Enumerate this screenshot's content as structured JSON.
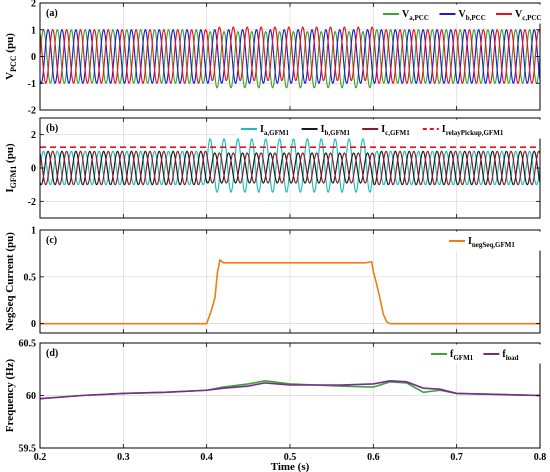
{
  "chart_data": [
    {
      "type": "line",
      "panel_label": "(a)",
      "ylabel": {
        "main": "V",
        "sub": "PCC",
        "tail": " (pu)"
      },
      "ylim": [
        -2,
        2
      ],
      "yticks": [
        -2,
        -1,
        0,
        1,
        2
      ],
      "xlim": [
        0.2,
        0.8
      ],
      "grid": true,
      "legend_position": "top-right",
      "fault_window": [
        0.4,
        0.6
      ],
      "series": [
        {
          "name": {
            "main": "V",
            "sub": "a,PCC"
          },
          "color": "#3aa335",
          "amplitude_pre": 1.0,
          "amplitude_fault": 1.05,
          "fault_offset": -0.12,
          "phase_deg": 0
        },
        {
          "name": {
            "main": "V",
            "sub": "b,PCC"
          },
          "color": "#1b1bd6",
          "amplitude_pre": 1.0,
          "amplitude_fault": 1.0,
          "fault_offset": 0.0,
          "phase_deg": -120
        },
        {
          "name": {
            "main": "V",
            "sub": "c,PCC"
          },
          "color": "#e8121c",
          "amplitude_pre": 1.0,
          "amplitude_fault": 1.0,
          "fault_offset": 0.1,
          "phase_deg": 120
        }
      ]
    },
    {
      "type": "line",
      "panel_label": "(b)",
      "ylabel": {
        "main": "I",
        "sub": "GFM1",
        "tail": " (pu)"
      },
      "ylim": [
        -3,
        3
      ],
      "yticks": [
        -2,
        0,
        2
      ],
      "xlim": [
        0.2,
        0.8
      ],
      "grid": true,
      "legend_position": "top-right",
      "fault_window": [
        0.4,
        0.6
      ],
      "series": [
        {
          "name": {
            "main": "I",
            "sub": "a,GFM1"
          },
          "color": "#1fbcbc",
          "amplitude_pre": 1.0,
          "amplitude_fault": 1.6,
          "fault_offset": 0.15,
          "phase_deg": 0
        },
        {
          "name": {
            "main": "I",
            "sub": "b,GFM1"
          },
          "color": "#1a1a1a",
          "amplitude_pre": 1.0,
          "amplitude_fault": 0.9,
          "fault_offset": 0.0,
          "phase_deg": -120
        },
        {
          "name": {
            "main": "I",
            "sub": "c,GFM1"
          },
          "color": "#8a1b2a",
          "amplitude_pre": 1.0,
          "amplitude_fault": 0.9,
          "fault_offset": 0.0,
          "phase_deg": 120
        },
        {
          "name": {
            "main": "I",
            "sub": "relayPickup,GFM1"
          },
          "color": "#e8121c",
          "dashed": true,
          "constant": 1.25
        }
      ]
    },
    {
      "type": "line",
      "panel_label": "(c)",
      "ylabel": {
        "main": "NegSeq Current (pu)",
        "sub": "",
        "tail": ""
      },
      "ylim": [
        -0.1,
        1.0
      ],
      "yticks": [
        0,
        0.5,
        1
      ],
      "xlim": [
        0.2,
        0.8
      ],
      "grid": true,
      "legend_position": "top-right",
      "series": [
        {
          "name": {
            "main": "I",
            "sub": "negSeq,GFM1"
          },
          "color": "#f07d14",
          "x": [
            0.2,
            0.4,
            0.402,
            0.406,
            0.41,
            0.413,
            0.416,
            0.42,
            0.5,
            0.59,
            0.598,
            0.6,
            0.604,
            0.608,
            0.612,
            0.616,
            0.62,
            0.8
          ],
          "y": [
            0.0,
            0.0,
            0.05,
            0.15,
            0.28,
            0.55,
            0.68,
            0.65,
            0.65,
            0.65,
            0.66,
            0.56,
            0.42,
            0.27,
            0.1,
            0.02,
            0.0,
            0.0
          ]
        }
      ]
    },
    {
      "type": "line",
      "panel_label": "(d)",
      "ylabel": {
        "main": "Frequency (Hz)",
        "sub": "",
        "tail": ""
      },
      "ylim": [
        59.5,
        60.5
      ],
      "yticks": [
        59.5,
        60,
        60.5
      ],
      "xlim": [
        0.2,
        0.8
      ],
      "xticks": [
        0.2,
        0.3,
        0.4,
        0.5,
        0.6,
        0.7,
        0.8
      ],
      "xlabel": "Time (s)",
      "grid": true,
      "legend_position": "top-right",
      "series": [
        {
          "name": {
            "main": "f",
            "sub": "GFM1"
          },
          "color": "#3aa335",
          "x": [
            0.2,
            0.25,
            0.3,
            0.35,
            0.4,
            0.42,
            0.45,
            0.47,
            0.5,
            0.53,
            0.56,
            0.6,
            0.62,
            0.64,
            0.66,
            0.68,
            0.7,
            0.75,
            0.8
          ],
          "y": [
            59.97,
            60.0,
            60.02,
            60.03,
            60.05,
            60.08,
            60.11,
            60.14,
            60.11,
            60.1,
            60.09,
            60.08,
            60.13,
            60.12,
            60.03,
            60.05,
            60.02,
            60.01,
            60.0
          ]
        },
        {
          "name": {
            "main": "f",
            "sub": "load"
          },
          "color": "#7b2a8e",
          "x": [
            0.2,
            0.25,
            0.3,
            0.35,
            0.4,
            0.42,
            0.45,
            0.47,
            0.5,
            0.53,
            0.56,
            0.6,
            0.62,
            0.64,
            0.66,
            0.68,
            0.7,
            0.75,
            0.8
          ],
          "y": [
            59.97,
            60.0,
            60.02,
            60.03,
            60.05,
            60.07,
            60.09,
            60.12,
            60.1,
            60.1,
            60.1,
            60.11,
            60.14,
            60.13,
            60.07,
            60.06,
            60.02,
            60.01,
            60.0
          ]
        }
      ]
    }
  ]
}
